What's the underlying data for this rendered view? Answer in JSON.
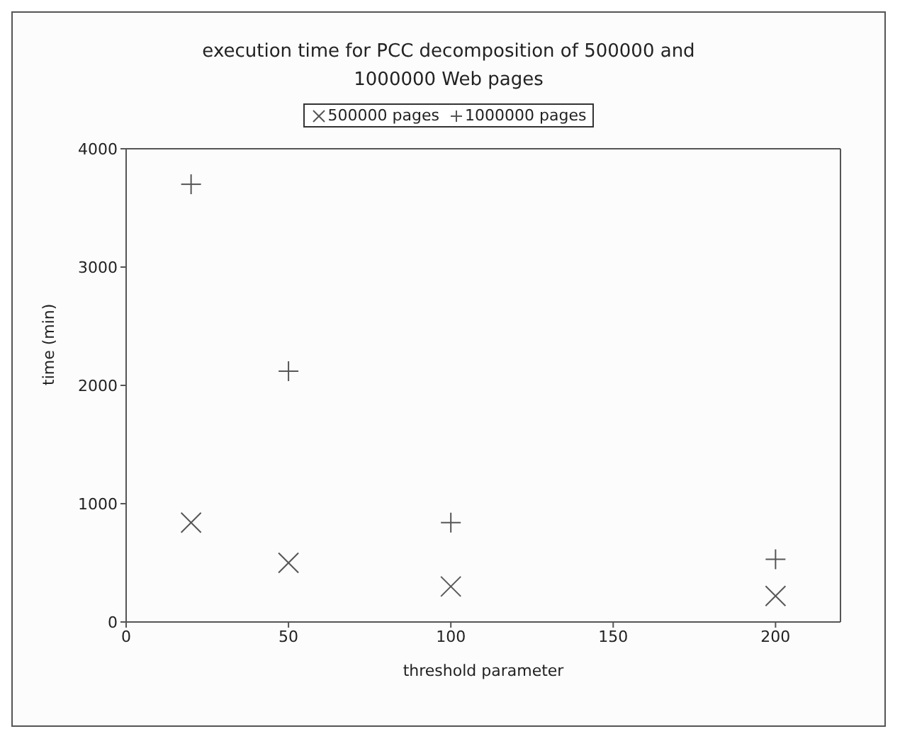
{
  "chart_data": {
    "type": "scatter",
    "title": "execution time for PCC decomposition of 500000 and 1000000 Web pages",
    "xlabel": "threshold parameter",
    "ylabel": "time (min)",
    "xlim": [
      0,
      220
    ],
    "xticks": [
      0,
      50,
      100,
      150,
      200
    ],
    "ylim": [
      0,
      4000
    ],
    "yticks": [
      0,
      1000,
      2000,
      3000,
      4000
    ],
    "legend": "top",
    "series": [
      {
        "name": "500000 pages",
        "color": "#555555",
        "marker": "cross",
        "x": [
          20,
          50,
          100,
          200
        ],
        "values": [
          840,
          500,
          300,
          220
        ]
      },
      {
        "name": "1000000 pages",
        "color": "#555555",
        "marker": "plus",
        "x": [
          20,
          50,
          100,
          200
        ],
        "values": [
          3700,
          2120,
          840,
          530
        ]
      }
    ]
  }
}
